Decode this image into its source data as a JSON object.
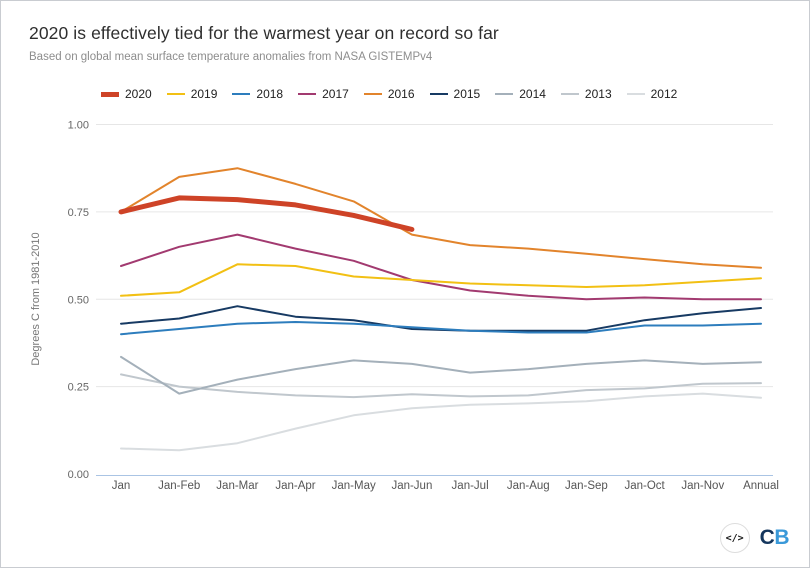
{
  "header": {
    "title": "2020 is effectively tied for the warmest year on record so far",
    "subtitle": "Based on global mean surface temperature anomalies from NASA GISTEMPv4"
  },
  "chart_data": {
    "type": "line",
    "title": "2020 is effectively tied for the warmest year on record so far",
    "subtitle": "Based on global mean surface temperature anomalies from NASA GISTEMPv4",
    "xlabel": "",
    "ylabel": "Degrees C from 1981-2010",
    "ylim": [
      0,
      1
    ],
    "yticks": [
      0,
      0.25,
      0.5,
      0.75,
      1
    ],
    "ytick_labels": [
      "0.00",
      "0.25",
      "0.50",
      "0.75",
      "1.00"
    ],
    "grid": true,
    "legend_position": "top",
    "categories": [
      "Jan",
      "Jan-Feb",
      "Jan-Mar",
      "Jan-Apr",
      "Jan-May",
      "Jan-Jun",
      "Jan-Jul",
      "Jan-Aug",
      "Jan-Sep",
      "Jan-Oct",
      "Jan-Nov",
      "Annual"
    ],
    "series": [
      {
        "name": "2020",
        "color": "#ce4327",
        "thick": true,
        "values": [
          0.75,
          0.79,
          0.785,
          0.77,
          0.74,
          0.7
        ]
      },
      {
        "name": "2019",
        "color": "#f2c014",
        "thick": false,
        "values": [
          0.51,
          0.52,
          0.6,
          0.595,
          0.565,
          0.555,
          0.545,
          0.54,
          0.535,
          0.54,
          0.55,
          0.56
        ]
      },
      {
        "name": "2018",
        "color": "#2d7dbd",
        "thick": false,
        "values": [
          0.4,
          0.415,
          0.43,
          0.435,
          0.43,
          0.42,
          0.41,
          0.405,
          0.405,
          0.425,
          0.425,
          0.43
        ]
      },
      {
        "name": "2017",
        "color": "#a23a70",
        "thick": false,
        "values": [
          0.595,
          0.65,
          0.685,
          0.645,
          0.61,
          0.555,
          0.525,
          0.51,
          0.5,
          0.505,
          0.5,
          0.5
        ]
      },
      {
        "name": "2016",
        "color": "#e2842c",
        "thick": false,
        "values": [
          0.75,
          0.85,
          0.875,
          0.83,
          0.78,
          0.685,
          0.655,
          0.645,
          0.63,
          0.615,
          0.6,
          0.59
        ]
      },
      {
        "name": "2015",
        "color": "#173a63",
        "thick": false,
        "values": [
          0.43,
          0.445,
          0.48,
          0.45,
          0.44,
          0.415,
          0.41,
          0.41,
          0.41,
          0.44,
          0.46,
          0.475
        ]
      },
      {
        "name": "2014",
        "color": "#a4b0ba",
        "thick": false,
        "values": [
          0.335,
          0.23,
          0.27,
          0.3,
          0.325,
          0.315,
          0.29,
          0.3,
          0.315,
          0.325,
          0.315,
          0.32
        ]
      },
      {
        "name": "2013",
        "color": "#c0c7cd",
        "thick": false,
        "values": [
          0.285,
          0.25,
          0.235,
          0.225,
          0.22,
          0.228,
          0.222,
          0.225,
          0.24,
          0.245,
          0.258,
          0.26
        ]
      },
      {
        "name": "2012",
        "color": "#d9dde0",
        "thick": false,
        "values": [
          0.073,
          0.068,
          0.088,
          0.13,
          0.168,
          0.188,
          0.198,
          0.202,
          0.208,
          0.222,
          0.23,
          0.218
        ]
      }
    ],
    "colors": {
      "grid": "#e6e6e6",
      "axis_line": "#aac4e4",
      "tick_text": "#666666",
      "axis_title_text": "#777777"
    }
  },
  "footer": {
    "embed_icon": "</>",
    "logo_c": "C",
    "logo_b": "B"
  }
}
